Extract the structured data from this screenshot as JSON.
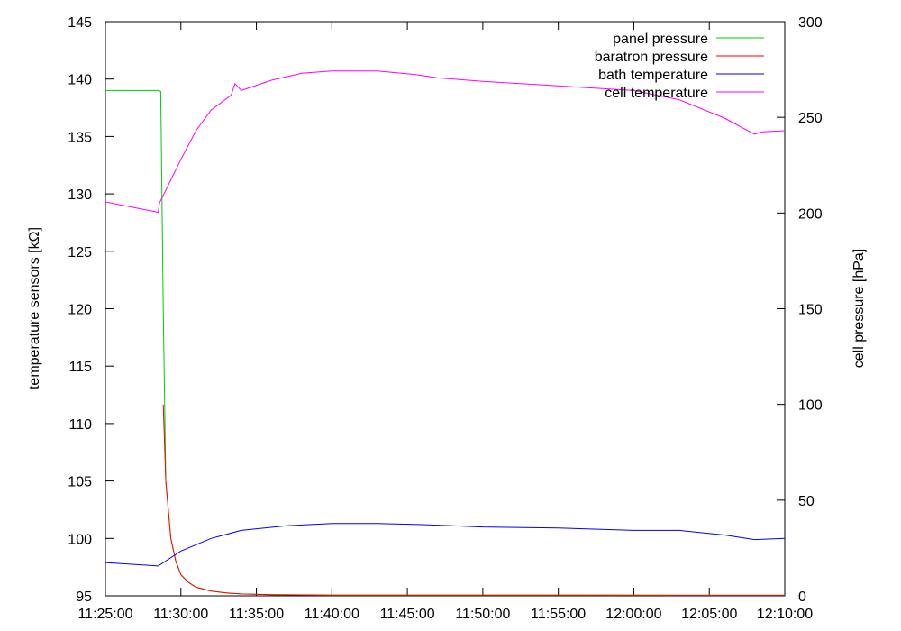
{
  "chart_data": {
    "type": "line",
    "title": "",
    "xlabel": "",
    "ylabel_left": "temperature sensors [kΩ]",
    "ylabel_right": "cell pressure [hPa]",
    "x_ticks": [
      "11:25:00",
      "11:30:00",
      "11:35:00",
      "11:40:00",
      "11:45:00",
      "11:50:00",
      "11:55:00",
      "12:00:00",
      "12:05:00",
      "12:10:00"
    ],
    "xlim": [
      "11:25:00",
      "12:10:00"
    ],
    "ylim_left": [
      95,
      145
    ],
    "ylim_right": [
      0,
      300
    ],
    "y_ticks_left": [
      95,
      100,
      105,
      110,
      115,
      120,
      125,
      130,
      135,
      140,
      145
    ],
    "y_ticks_right": [
      0,
      50,
      100,
      150,
      200,
      250,
      300
    ],
    "grid": false,
    "legend_position": "top-right",
    "series": [
      {
        "name": "panel pressure",
        "color": "#00cc00",
        "axis": "right",
        "x": [
          "11:25:00",
          "11:28:30",
          "11:28:40",
          "11:28:50",
          "11:29:00",
          "11:29:20",
          "11:29:40",
          "11:30:00",
          "11:30:30",
          "11:31:00",
          "11:32:00",
          "11:33:00",
          "11:34:00",
          "11:36:00",
          "11:40:00",
          "12:10:00"
        ],
        "y": [
          264,
          264,
          263.5,
          150,
          60,
          30,
          18,
          11,
          7,
          4.5,
          2.5,
          1.5,
          1.0,
          0.6,
          0.4,
          0.3
        ]
      },
      {
        "name": "baratron pressure",
        "color": "#ff0000",
        "axis": "right",
        "x": [
          "11:28:50",
          "11:29:00",
          "11:29:20",
          "11:29:40",
          "11:30:00",
          "11:30:30",
          "11:31:00",
          "11:32:00",
          "11:33:00",
          "11:34:00",
          "11:36:00",
          "11:40:00",
          "12:10:00"
        ],
        "y": [
          100,
          60,
          30,
          18,
          11,
          7,
          4.5,
          2.5,
          1.5,
          1.0,
          0.6,
          0.4,
          0.3
        ]
      },
      {
        "name": "bath temperature",
        "color": "#0000ff",
        "axis": "left",
        "x": [
          "11:25:00",
          "11:28:30",
          "11:30:00",
          "11:32:00",
          "11:34:00",
          "11:37:00",
          "11:40:00",
          "11:43:00",
          "11:46:00",
          "11:50:00",
          "11:55:00",
          "12:00:00",
          "12:03:00",
          "12:06:00",
          "12:08:00",
          "12:10:00"
        ],
        "y": [
          97.9,
          97.6,
          98.9,
          100.0,
          100.7,
          101.1,
          101.3,
          101.3,
          101.2,
          101.0,
          100.9,
          100.7,
          100.7,
          100.3,
          99.9,
          100.0
        ]
      },
      {
        "name": "cell temperature",
        "color": "#ff00ff",
        "axis": "left",
        "x": [
          "11:25:00",
          "11:28:30",
          "11:28:35",
          "11:30:00",
          "11:31:00",
          "11:32:00",
          "11:33:20",
          "11:33:35",
          "11:34:00",
          "11:36:00",
          "11:38:00",
          "11:40:00",
          "11:43:00",
          "11:45:30",
          "11:47:00",
          "11:50:00",
          "11:55:00",
          "12:00:00",
          "12:03:00",
          "12:06:00",
          "12:08:00",
          "12:08:30",
          "12:10:00"
        ],
        "y": [
          129.3,
          128.4,
          129.2,
          133.0,
          135.5,
          137.3,
          138.6,
          139.6,
          139.0,
          139.9,
          140.5,
          140.7,
          140.7,
          140.4,
          140.1,
          139.8,
          139.4,
          139.0,
          138.2,
          136.6,
          135.2,
          135.4,
          135.5
        ]
      }
    ]
  }
}
